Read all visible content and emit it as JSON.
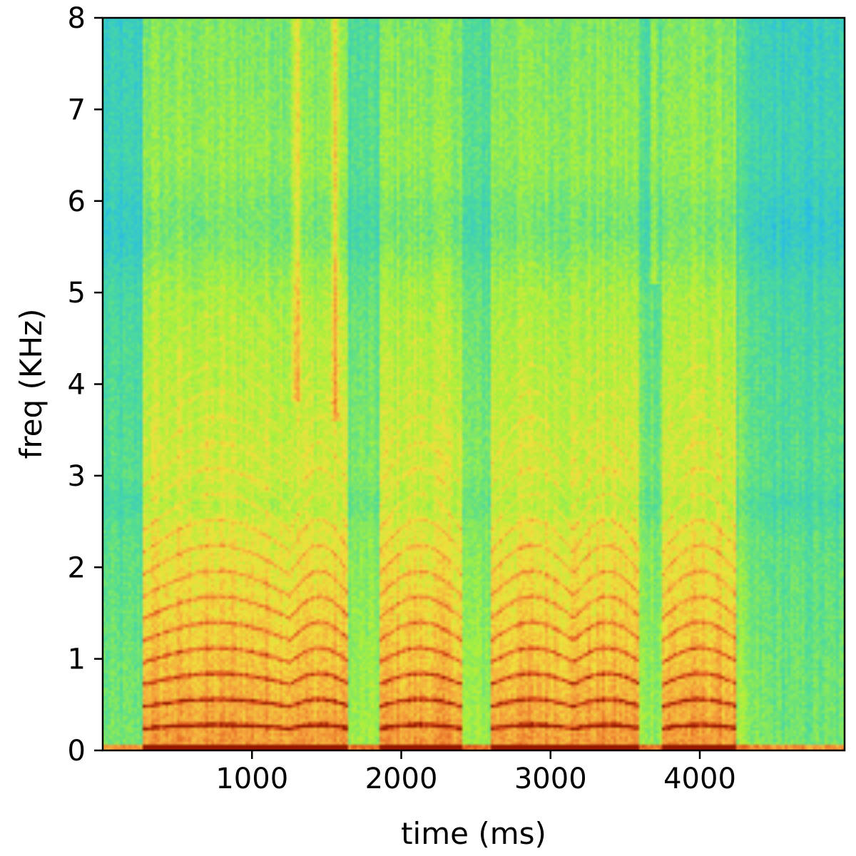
{
  "chart_data": {
    "type": "heatmap",
    "subtype": "spectrogram",
    "title": "",
    "xlabel": "time (ms)",
    "ylabel": "freq (KHz)",
    "xlim": [
      0,
      4970
    ],
    "ylim": [
      0,
      8
    ],
    "xticks": [
      1000,
      2000,
      3000,
      4000
    ],
    "xtick_labels": [
      "1000",
      "2000",
      "3000",
      "4000"
    ],
    "yticks": [
      0,
      1,
      2,
      3,
      4,
      5,
      6,
      7,
      8
    ],
    "ytick_labels": [
      "0",
      "1",
      "2",
      "3",
      "4",
      "5",
      "6",
      "7",
      "8"
    ],
    "colormap": "jet-like (blue low energy, green/yellow mid, orange/dark red high energy)",
    "grid": false,
    "legend": "none",
    "colors": {
      "low": "#2fc8e0",
      "mid_low": "#5ee08a",
      "mid": "#a8f040",
      "mid_high": "#f8d040",
      "high": "#f28a30",
      "peak": "#b02000"
    },
    "voiced_segments_ms": [
      {
        "start": 270,
        "end": 1250
      },
      {
        "start": 1250,
        "end": 1650
      },
      {
        "start": 1850,
        "end": 2400
      },
      {
        "start": 2600,
        "end": 3150
      },
      {
        "start": 3150,
        "end": 3600
      },
      {
        "start": 3750,
        "end": 4250
      }
    ],
    "broadband_bursts_ms": [
      {
        "time": 1300,
        "fmin_khz": 3.8,
        "fmax_khz": 8.0
      },
      {
        "time": 1560,
        "fmin_khz": 3.6,
        "fmax_khz": 8.0
      },
      {
        "time": 3700,
        "fmin_khz": 5.1,
        "fmax_khz": 8.0
      }
    ]
  }
}
